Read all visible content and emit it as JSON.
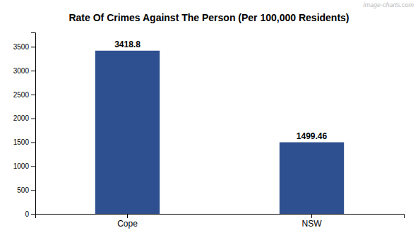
{
  "chart_data": {
    "type": "bar",
    "title": "Rate Of Crimes Against The Person (Per 100,000 Residents)",
    "categories": [
      "Cope",
      "NSW"
    ],
    "values": [
      3418.8,
      1499.46
    ],
    "color": "#2e5090",
    "ylim": [
      0,
      3800
    ],
    "yticks": [
      0,
      500,
      1000,
      1500,
      2000,
      2500,
      3000,
      3500
    ],
    "grid": false,
    "data_labels": true,
    "annotations": [
      "image-charts.com"
    ]
  }
}
